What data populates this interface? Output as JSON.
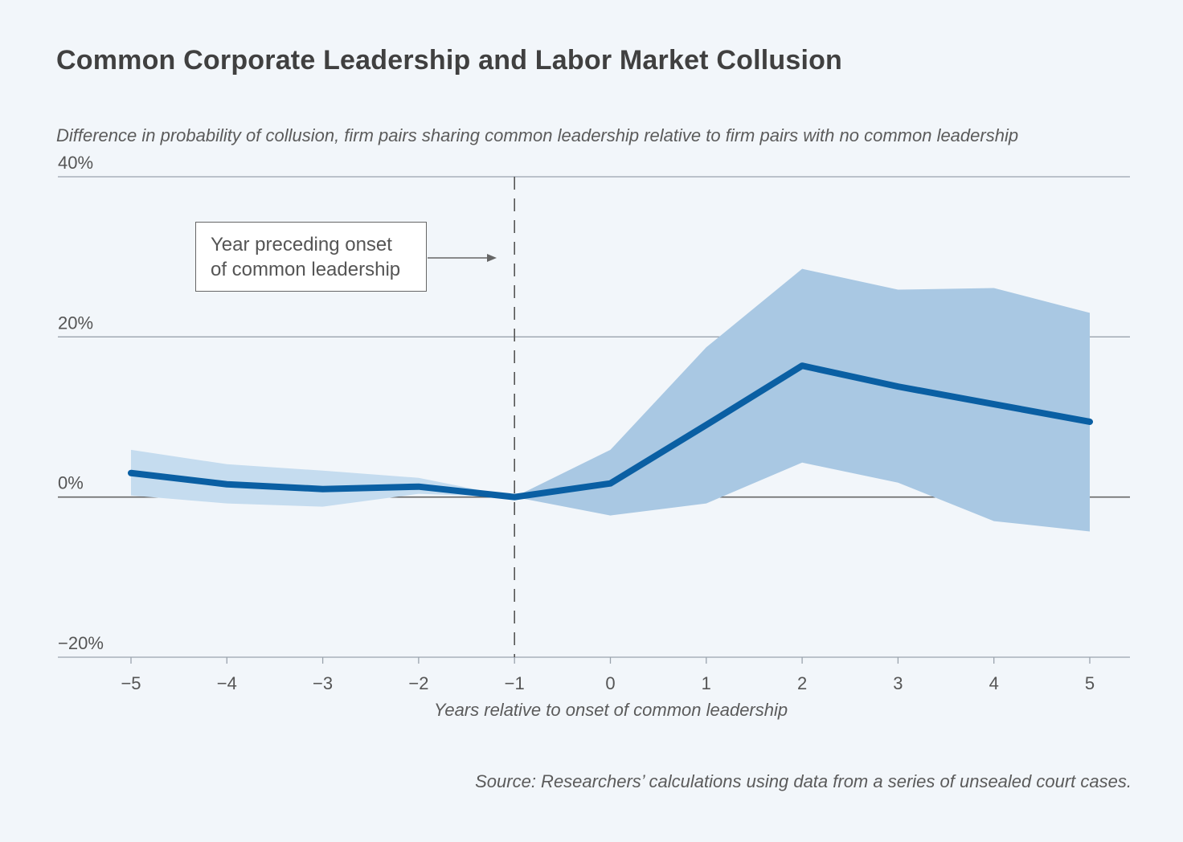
{
  "title": "Common Corporate Leadership and Labor Market Collusion",
  "subtitle": "Difference in probability of collusion, firm pairs sharing common leadership relative to firm pairs with no common leadership",
  "source": "Source: Researchers’ calculations using data from a series of unsealed court cases.",
  "annotation": {
    "line1": "Year preceding onset",
    "line2": "of common leadership"
  },
  "colors": {
    "line": "#0a5fa3",
    "band": "#a9c8e3",
    "band_pre": "#c5dcef",
    "grid": "#9aa3ad",
    "zero_line": "#666666"
  },
  "chart_data": {
    "type": "line",
    "x": [
      -5,
      -4,
      -3,
      -2,
      -1,
      0,
      1,
      2,
      3,
      4,
      5
    ],
    "x_tick_labels": [
      "−5",
      "−4",
      "−3",
      "−2",
      "−1",
      "0",
      "1",
      "2",
      "3",
      "4",
      "5"
    ],
    "y_tick_labels": [
      "40%",
      "20%",
      "0%",
      "−20%"
    ],
    "y_ticks": [
      40,
      20,
      0,
      -20
    ],
    "ylim": [
      -20,
      40
    ],
    "xlim": [
      -5.75,
      5.4
    ],
    "xlabel": "Years relative to onset of common leadership",
    "ylabel": "",
    "grid": true,
    "reference_line_x": -1,
    "series": [
      {
        "values": [
          3.0,
          1.6,
          1.0,
          1.3,
          0.0,
          1.7,
          9.0,
          16.4,
          13.8,
          11.6,
          9.4
        ],
        "ci_lower": [
          0.2,
          -0.8,
          -1.2,
          0.4,
          0.0,
          -2.3,
          -0.8,
          4.3,
          1.8,
          -3.0,
          -4.3
        ],
        "ci_upper": [
          5.9,
          4.1,
          3.3,
          2.4,
          0.0,
          5.9,
          18.7,
          28.5,
          25.9,
          26.1,
          23.0
        ]
      }
    ]
  }
}
